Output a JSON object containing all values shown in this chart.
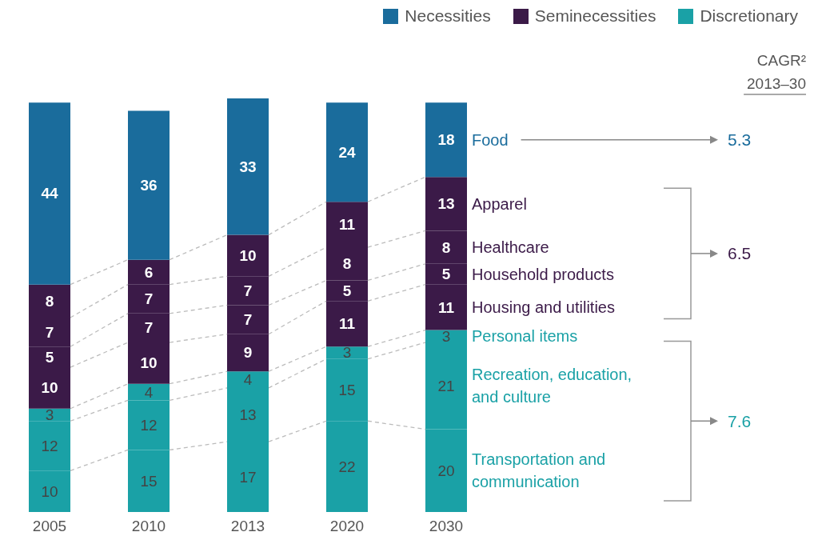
{
  "chart_data": {
    "type": "bar",
    "stacked": true,
    "data_labels": true,
    "legend": "right",
    "categories": [
      "2005",
      "2010",
      "2013",
      "2020",
      "2030"
    ],
    "series": [
      {
        "name": "Transportation and communication",
        "color": "#1aa1a6",
        "values": [
          10,
          15,
          17,
          22,
          20
        ]
      },
      {
        "name": "Recreation, education, and culture",
        "color": "#1aa1a6",
        "values": [
          12,
          12,
          13,
          15,
          21
        ]
      },
      {
        "name": "Personal items",
        "color": "#1aa1a6",
        "values": [
          3,
          4,
          4,
          3,
          3
        ]
      },
      {
        "name": "Housing and utilities",
        "color": "#3b1a48",
        "values": [
          10,
          10,
          9,
          11,
          11
        ]
      },
      {
        "name": "Household products",
        "color": "#3b1a48",
        "values": [
          5,
          7,
          7,
          5,
          5
        ]
      },
      {
        "name": "Healthcare",
        "color": "#3b1a48",
        "values": [
          7,
          7,
          7,
          8,
          8
        ]
      },
      {
        "name": "Apparel",
        "color": "#3b1a48",
        "values": [
          8,
          6,
          10,
          11,
          13
        ]
      },
      {
        "name": "Food",
        "color": "#1a6c9c",
        "values": [
          44,
          36,
          33,
          24,
          18
        ]
      }
    ],
    "annotations": [
      "Necessities",
      "Seminecessities",
      "Discretionary",
      "CAGR²",
      "2013–30",
      "5.3",
      "6.5",
      "7.6"
    ]
  }
}
